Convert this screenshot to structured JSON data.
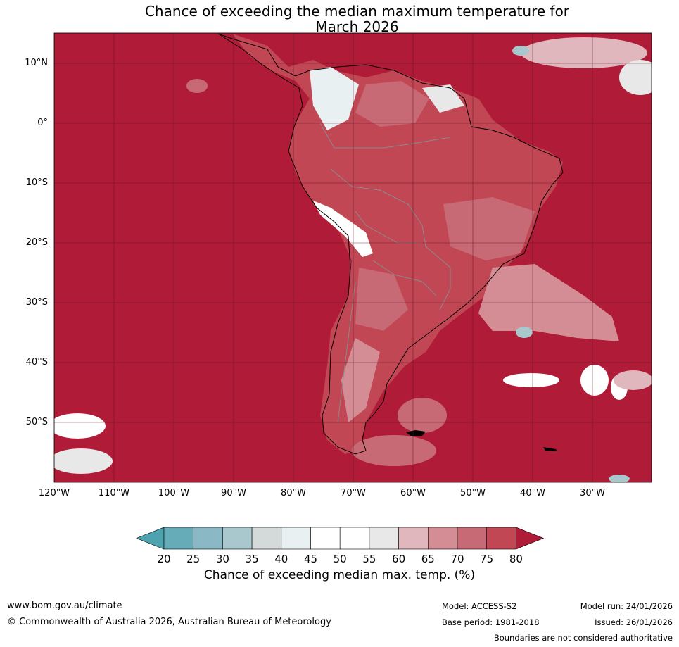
{
  "title": {
    "line1": "Chance of exceeding the median maximum temperature for",
    "line2": "March 2026"
  },
  "map": {
    "latitude_labels": [
      "10°N",
      "0°",
      "10°S",
      "20°S",
      "30°S",
      "40°S",
      "50°S"
    ],
    "longitude_labels": [
      "120°W",
      "110°W",
      "100°W",
      "90°W",
      "80°W",
      "70°W",
      "60°W",
      "50°W",
      "40°W",
      "30°W"
    ],
    "ocean_color": "#b01c37",
    "grid_color": "#5a1420"
  },
  "colorbar": {
    "ticks": [
      "20",
      "25",
      "30",
      "35",
      "40",
      "45",
      "50",
      "55",
      "60",
      "65",
      "70",
      "75",
      "80"
    ],
    "colors": [
      "#65abb8",
      "#8ab8c5",
      "#a9c8ce",
      "#d4d9da",
      "#e9f0f2",
      "#ffffff",
      "#ffffff",
      "#e8e8e8",
      "#e0b7bd",
      "#d58d95",
      "#c86a75",
      "#c24755"
    ],
    "low_extend_color": "#4fa2b0",
    "high_extend_color": "#b01c37",
    "label": "Chance of exceeding median max. temp. (%)"
  },
  "footer": {
    "website": "www.bom.gov.au/climate",
    "copyright": "© Commonwealth of Australia 2026, Australian Bureau of Meteorology",
    "model": "Model: ACCESS-S2",
    "base_period": "Base period: 1981-2018",
    "model_run": "Model run: 24/01/2026",
    "issued": "Issued: 26/01/2026",
    "disclaimer": "Boundaries are not considered authoritative"
  }
}
